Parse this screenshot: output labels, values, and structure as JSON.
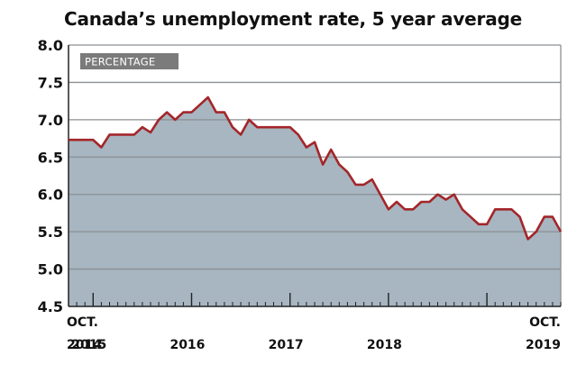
{
  "title": "Canada’s unemployment rate, 5 year average",
  "chart_data": {
    "type": "area",
    "title": "Canada’s unemployment rate, 5 year average",
    "unit_label": "PERCENTAGE",
    "ylim": [
      4.5,
      8.0
    ],
    "yticks": [
      "4.5",
      "5.0",
      "5.5",
      "6.0",
      "6.5",
      "7.0",
      "7.5",
      "8.0"
    ],
    "xlim": [
      0,
      60
    ],
    "xticks": [
      {
        "x": 0,
        "line1": "OCT.",
        "line2": "2014"
      },
      {
        "x": 2.5,
        "line1": "",
        "line2": "2015"
      },
      {
        "x": 14.5,
        "line1": "",
        "line2": "2016"
      },
      {
        "x": 26.5,
        "line1": "",
        "line2": "2017"
      },
      {
        "x": 38.5,
        "line1": "",
        "line2": "2018"
      },
      {
        "x": 60,
        "line1": "OCT.",
        "line2": "2019"
      }
    ],
    "x": [
      "2014-10",
      "2014-11",
      "2014-12",
      "2015-01",
      "2015-02",
      "2015-03",
      "2015-04",
      "2015-05",
      "2015-06",
      "2015-07",
      "2015-08",
      "2015-09",
      "2015-10",
      "2015-11",
      "2015-12",
      "2016-01",
      "2016-02",
      "2016-03",
      "2016-04",
      "2016-05",
      "2016-06",
      "2016-07",
      "2016-08",
      "2016-09",
      "2016-10",
      "2016-11",
      "2016-12",
      "2017-01",
      "2017-02",
      "2017-03",
      "2017-04",
      "2017-05",
      "2017-06",
      "2017-07",
      "2017-08",
      "2017-09",
      "2017-10",
      "2017-11",
      "2017-12",
      "2018-01",
      "2018-02",
      "2018-03",
      "2018-04",
      "2018-05",
      "2018-06",
      "2018-07",
      "2018-08",
      "2018-09",
      "2018-10",
      "2018-11",
      "2018-12",
      "2019-01",
      "2019-02",
      "2019-03",
      "2019-04",
      "2019-05",
      "2019-06",
      "2019-07",
      "2019-08",
      "2019-09",
      "2019-10"
    ],
    "series": [
      {
        "values": [
          6.73,
          6.73,
          6.73,
          6.73,
          6.63,
          6.8,
          6.8,
          6.8,
          6.8,
          6.9,
          6.83,
          7.0,
          7.1,
          7.0,
          7.1,
          7.1,
          7.2,
          7.3,
          7.1,
          7.1,
          6.9,
          6.8,
          7.0,
          6.9,
          6.9,
          6.9,
          6.9,
          6.9,
          6.8,
          6.63,
          6.7,
          6.4,
          6.6,
          6.4,
          6.3,
          6.13,
          6.13,
          6.2,
          6.0,
          5.8,
          5.9,
          5.8,
          5.8,
          5.9,
          5.9,
          6.0,
          5.93,
          6.0,
          5.8,
          5.7,
          5.6,
          5.6,
          5.8,
          5.8,
          5.8,
          5.7,
          5.4,
          5.5,
          5.7,
          5.7,
          5.5
        ]
      }
    ],
    "colors": {
      "area": "#a7b6c1",
      "line": "#a3262a",
      "grid": "#8b8f93",
      "axis": "#222222",
      "label_box": "#7b7b7b"
    }
  }
}
